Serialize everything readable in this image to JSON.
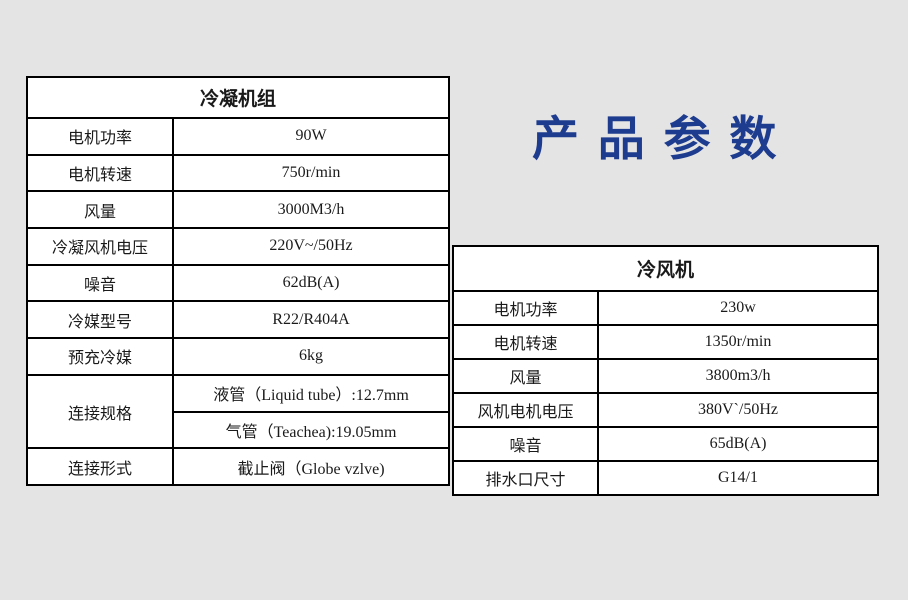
{
  "page_title": "产品参数",
  "colors": {
    "title_blue": "#1e3c8f",
    "background_gray": "#e4e4e4",
    "table_border": "#000000",
    "table_background": "#ffffff"
  },
  "tables": [
    {
      "title": "冷凝机组",
      "rows": [
        {
          "label": "电机功率",
          "value": "90W"
        },
        {
          "label": "电机转速",
          "value": "750r/min"
        },
        {
          "label": "风量",
          "value": "3000M3/h"
        },
        {
          "label": "冷凝风机电压",
          "value": "220V~/50Hz"
        },
        {
          "label": "噪音",
          "value": "62dB(A)"
        },
        {
          "label": "冷媒型号",
          "value": "R22/R404A"
        },
        {
          "label": "预充冷媒",
          "value": "6kg"
        },
        {
          "label": "连接规格",
          "values": [
            "液管（Liquid tube）:12.7mm",
            "气管（Teachea):19.05mm"
          ]
        },
        {
          "label": "连接形式",
          "value": "截止阀（Globe vzlve)"
        }
      ]
    },
    {
      "title": "冷风机",
      "rows": [
        {
          "label": "电机功率",
          "value": "230w"
        },
        {
          "label": "电机转速",
          "value": "1350r/min"
        },
        {
          "label": "风量",
          "value": "3800m3/h"
        },
        {
          "label": "风机电机电压",
          "value": "380V`/50Hz"
        },
        {
          "label": "噪音",
          "value": "65dB(A)"
        },
        {
          "label": "排水口尺寸",
          "value": "G14/1"
        }
      ]
    }
  ]
}
